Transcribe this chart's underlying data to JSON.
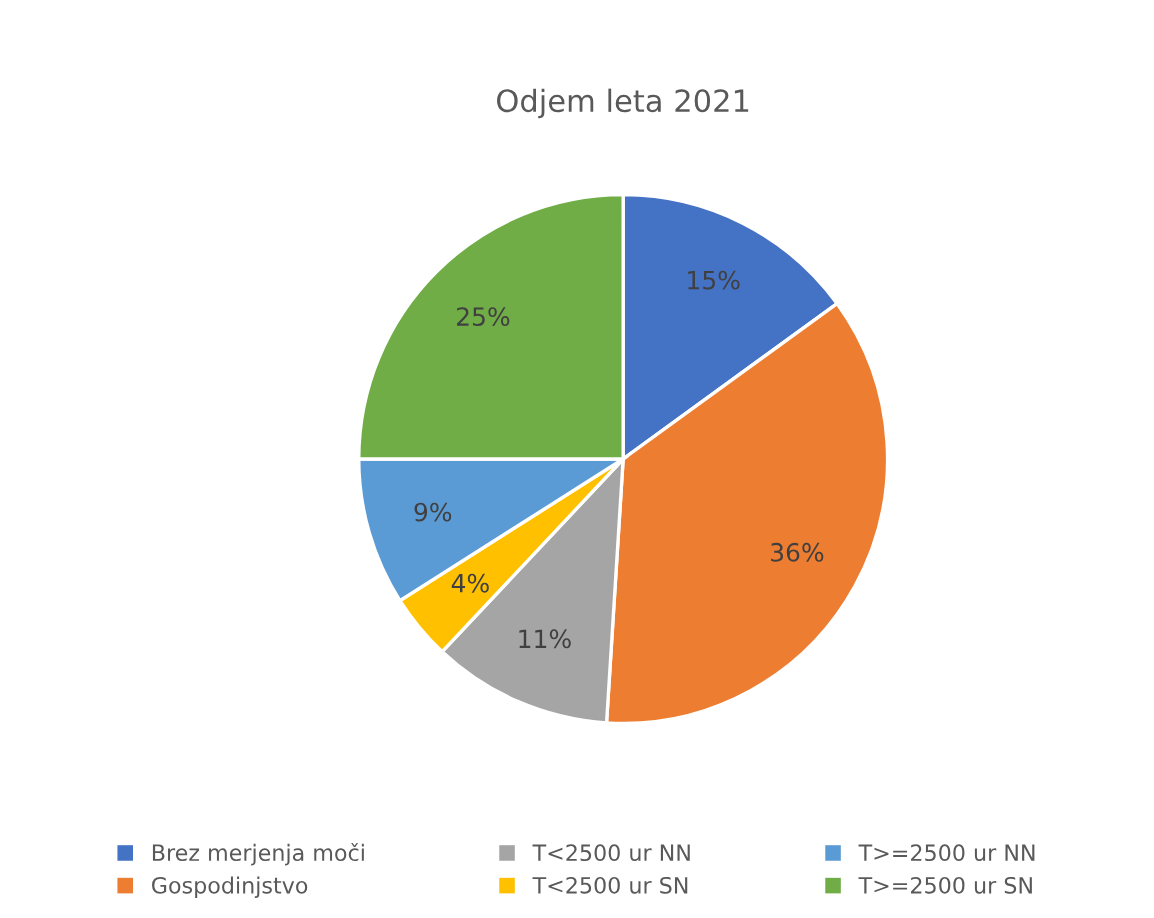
{
  "chart_data": {
    "type": "pie",
    "title": "Odjem leta 2021",
    "categories": [
      "Brez merjenja moči",
      "Gospodinjstvo",
      "T<2500 ur NN",
      "T<2500 ur SN",
      "T>=2500 ur NN",
      "T>=2500 ur SN"
    ],
    "values": [
      15,
      36,
      11,
      4,
      9,
      25
    ],
    "colors": [
      "#4472c4",
      "#ed7d31",
      "#a5a5a5",
      "#ffc000",
      "#5b9bd5",
      "#70ad47"
    ],
    "value_labels": [
      "15%",
      "36%",
      "11%",
      "4%",
      "9%",
      "25%"
    ],
    "legend": "bottom"
  }
}
